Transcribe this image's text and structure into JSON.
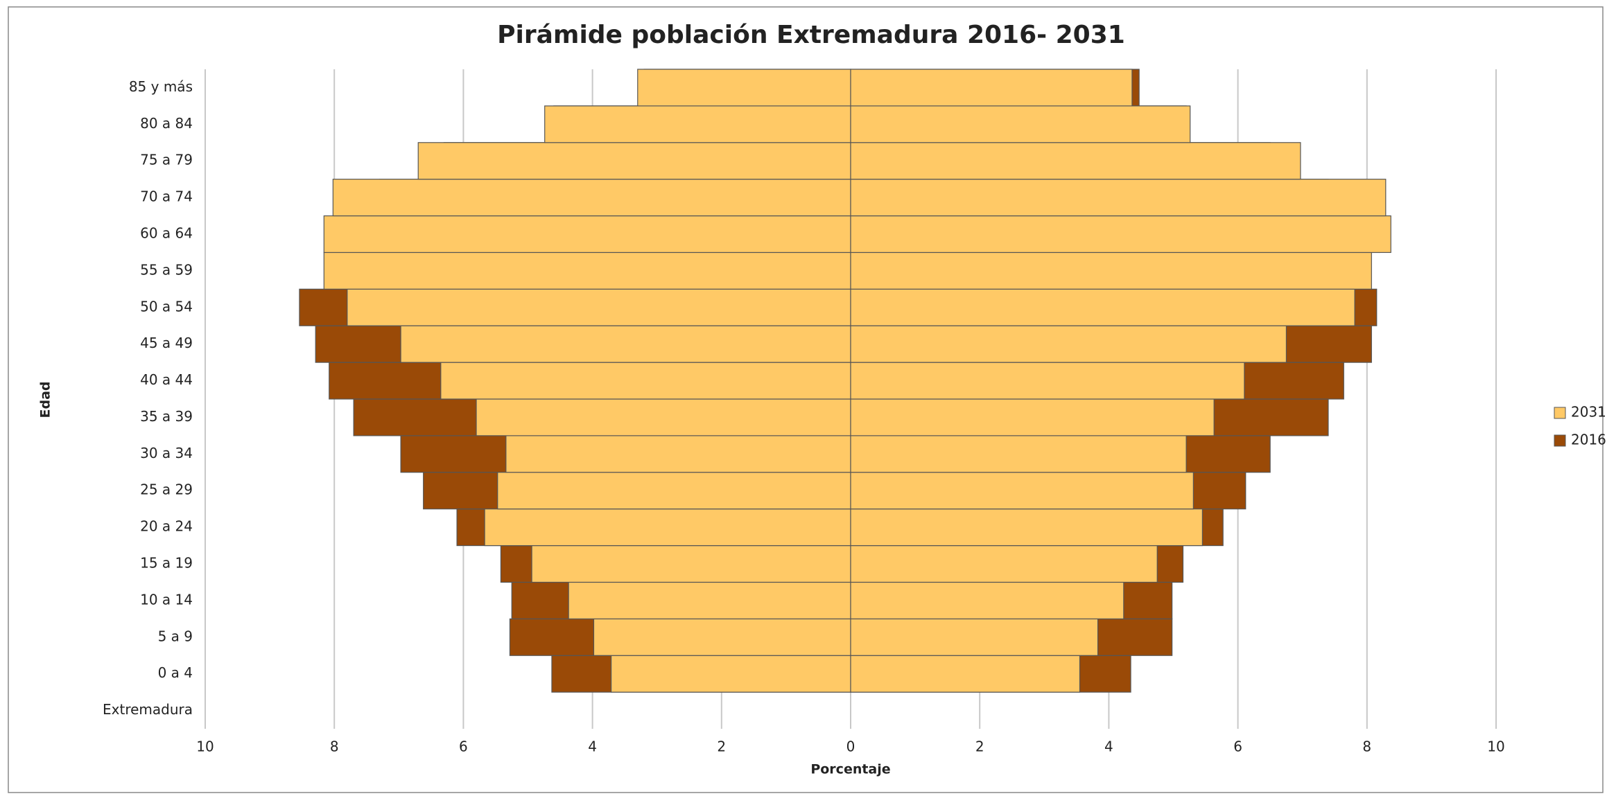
{
  "chart_data": {
    "type": "pyramid",
    "title": "Pirámide población Extremadura 2016- 2031",
    "x_label": "Porcentaje",
    "y_label": "Edad",
    "categories": [
      "Extremadura",
      "0 a 4",
      "5 a 9",
      "10 a 14",
      "15 a 19",
      "20 a 24",
      "25 a 29",
      "30 a 34",
      "35 a 39",
      "40 a 44",
      "45 a 49",
      "50 a 54",
      "55 a 59",
      "60 a 64",
      "70 a 74",
      "75 a 79",
      "80 a 84",
      "85 y más"
    ],
    "series": [
      {
        "name": "2031",
        "color": "#FFC966",
        "left": [
          null,
          -3.71,
          -3.98,
          -4.37,
          -4.94,
          -5.67,
          -5.47,
          -5.34,
          -5.8,
          -6.35,
          -6.97,
          -7.8,
          -8.16,
          -8.16,
          -8.02,
          -6.7,
          -4.74,
          -3.3
        ],
        "right": [
          null,
          3.55,
          3.83,
          4.23,
          4.75,
          5.45,
          5.31,
          5.2,
          5.63,
          6.1,
          6.75,
          7.81,
          8.07,
          8.37,
          8.29,
          6.97,
          5.26,
          4.36
        ]
      },
      {
        "name": "2016",
        "color": "#9A4A07",
        "left": [
          null,
          -4.63,
          -5.28,
          -5.25,
          -5.42,
          -6.1,
          -6.62,
          -6.97,
          -7.7,
          -8.08,
          -8.29,
          -8.54,
          -8.1,
          -8.0,
          -7.3,
          -6.3,
          -4.6,
          -3.2
        ],
        "right": [
          null,
          4.34,
          4.98,
          4.98,
          5.15,
          5.77,
          6.12,
          6.5,
          7.4,
          7.64,
          8.07,
          8.15,
          8.0,
          8.2,
          7.4,
          6.5,
          5.2,
          4.47
        ]
      }
    ],
    "xlim": [
      -10,
      10
    ],
    "xticks": [
      {
        "value": -10,
        "label": "10"
      },
      {
        "value": -8,
        "label": "8"
      },
      {
        "value": -6,
        "label": "6"
      },
      {
        "value": -4,
        "label": "4"
      },
      {
        "value": -2,
        "label": "2"
      },
      0,
      2,
      4,
      6,
      8,
      10
    ],
    "grid": true,
    "legend": "right"
  }
}
